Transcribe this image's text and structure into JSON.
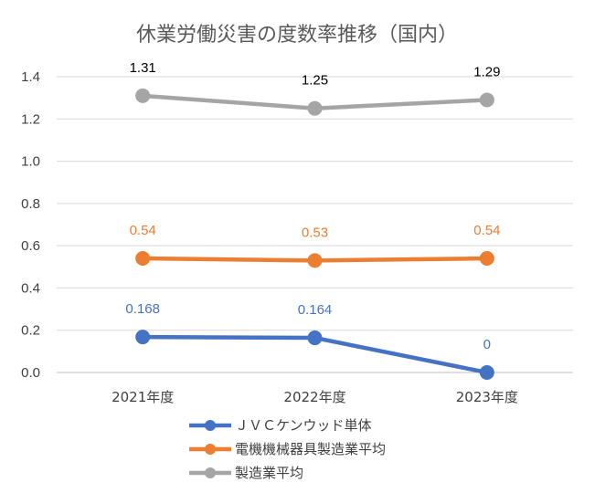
{
  "chart_data": {
    "type": "line",
    "title": "休業労働災害の度数率推移（国内）",
    "categories": [
      "2021年度",
      "2022年度",
      "2023年度"
    ],
    "ylim": [
      0,
      1.4
    ],
    "y_ticks": [
      "0.0",
      "0.2",
      "0.4",
      "0.6",
      "0.8",
      "1.0",
      "1.2",
      "1.4"
    ],
    "grid": true,
    "legend_position": "bottom",
    "series": [
      {
        "name": "ＪＶＣケンウッド単体",
        "color": "#4472c4",
        "values": [
          0.168,
          0.164,
          0
        ],
        "labels": [
          "0.168",
          "0.164",
          "0"
        ]
      },
      {
        "name": "電機機械器具製造業平均",
        "color": "#ed7d31",
        "values": [
          0.54,
          0.53,
          0.54
        ],
        "labels": [
          "0.54",
          "0.53",
          "0.54"
        ]
      },
      {
        "name": "製造業平均",
        "color": "#a5a5a5",
        "values": [
          1.31,
          1.25,
          1.29
        ],
        "labels": [
          "1.31",
          "1.25",
          "1.29"
        ],
        "label_color": "#000000"
      }
    ]
  }
}
